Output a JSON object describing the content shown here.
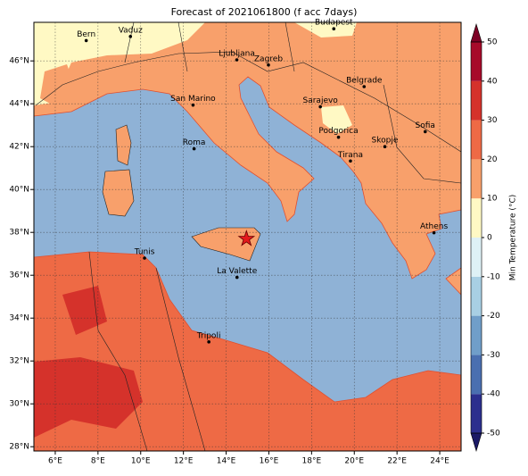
{
  "title": "Forecast of 2021061800 (f acc 7days)",
  "map": {
    "lon_range": [
      5,
      25
    ],
    "lat_range": [
      27.8,
      47.8
    ],
    "lon_ticks": [
      {
        "value": 6,
        "label": "6°E"
      },
      {
        "value": 8,
        "label": "8°E"
      },
      {
        "value": 10,
        "label": "10°E"
      },
      {
        "value": 12,
        "label": "12°E"
      },
      {
        "value": 14,
        "label": "14°E"
      },
      {
        "value": 16,
        "label": "16°E"
      },
      {
        "value": 18,
        "label": "18°E"
      },
      {
        "value": 20,
        "label": "20°E"
      },
      {
        "value": 22,
        "label": "22°E"
      },
      {
        "value": 24,
        "label": "24°E"
      }
    ],
    "lat_ticks": [
      {
        "value": 28,
        "label": "28°N"
      },
      {
        "value": 30,
        "label": "30°N"
      },
      {
        "value": 32,
        "label": "32°N"
      },
      {
        "value": 34,
        "label": "34°N"
      },
      {
        "value": 36,
        "label": "36°N"
      },
      {
        "value": 38,
        "label": "38°N"
      },
      {
        "value": 40,
        "label": "40°N"
      },
      {
        "value": 42,
        "label": "42°N"
      },
      {
        "value": 44,
        "label": "44°N"
      },
      {
        "value": 46,
        "label": "46°N"
      }
    ],
    "cities": [
      {
        "name": "Bern",
        "lon": 7.45,
        "lat": 46.95
      },
      {
        "name": "Vaduz",
        "lon": 9.52,
        "lat": 47.14
      },
      {
        "name": "Budapest",
        "lon": 19.04,
        "lat": 47.5
      },
      {
        "name": "Ljubljana",
        "lon": 14.5,
        "lat": 46.05
      },
      {
        "name": "Zagreb",
        "lon": 15.98,
        "lat": 45.81
      },
      {
        "name": "Belgrade",
        "lon": 20.46,
        "lat": 44.8
      },
      {
        "name": "San Marino",
        "lon": 12.45,
        "lat": 43.94
      },
      {
        "name": "Sarajevo",
        "lon": 18.41,
        "lat": 43.86
      },
      {
        "name": "Sofia",
        "lon": 23.32,
        "lat": 42.7
      },
      {
        "name": "Podgorica",
        "lon": 19.26,
        "lat": 42.44
      },
      {
        "name": "Skopje",
        "lon": 21.43,
        "lat": 42.0
      },
      {
        "name": "Roma",
        "lon": 12.5,
        "lat": 41.9
      },
      {
        "name": "Tirana",
        "lon": 19.82,
        "lat": 41.33
      },
      {
        "name": "Athens",
        "lon": 23.73,
        "lat": 37.98
      },
      {
        "name": "Tunis",
        "lon": 10.18,
        "lat": 36.8
      },
      {
        "name": "La Valette",
        "lon": 14.51,
        "lat": 35.9
      },
      {
        "name": "Tripoli",
        "lon": 13.19,
        "lat": 32.89
      }
    ],
    "marker": {
      "lon": 14.95,
      "lat": 37.7,
      "color": "#e41a1c"
    }
  },
  "colorbar": {
    "label": "Min Temperature (°C)",
    "ticks": [
      -50,
      -40,
      -30,
      -20,
      -10,
      0,
      10,
      20,
      30,
      40,
      50
    ],
    "colors": [
      "#2c2f8e",
      "#4a6fb0",
      "#709ec9",
      "#a8cfe4",
      "#def1f6",
      "#fff9c4",
      "#f8a06b",
      "#ee6a45",
      "#d5322b",
      "#a70a2a"
    ],
    "under_color": "#1b1a66",
    "over_color": "#7d0025"
  }
}
